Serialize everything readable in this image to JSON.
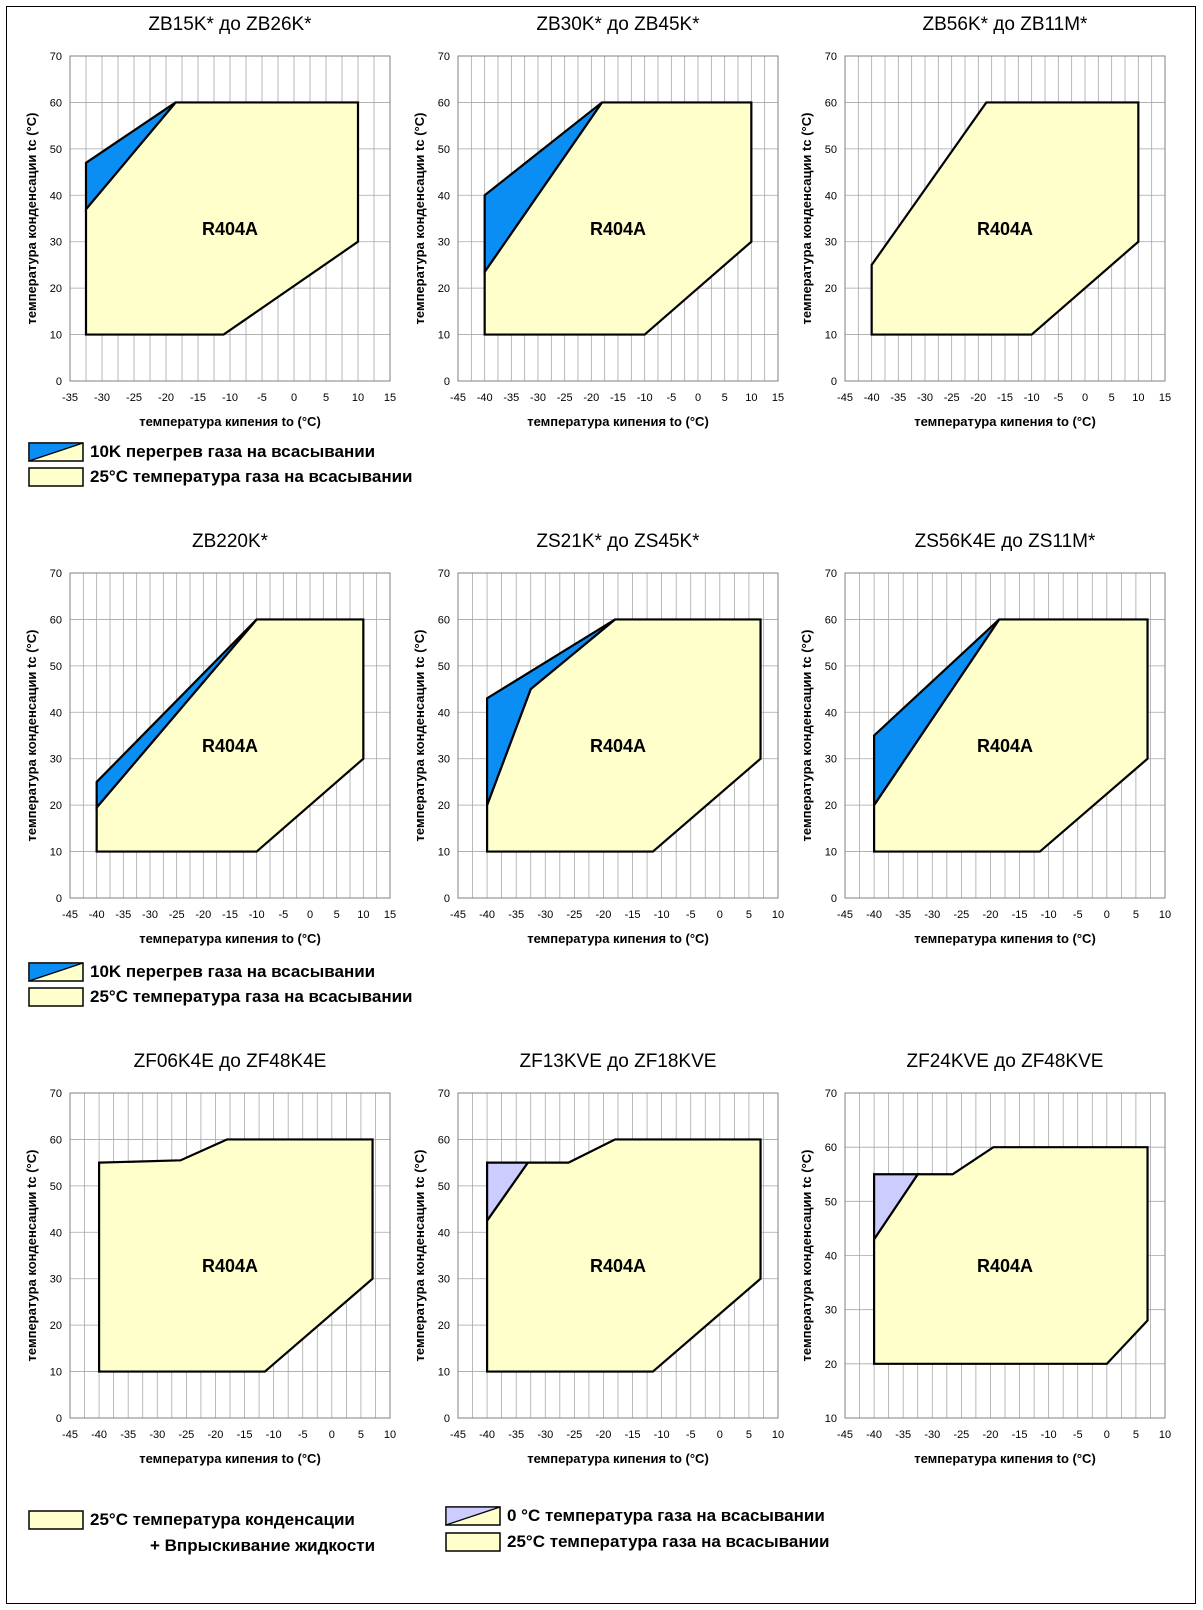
{
  "legends": {
    "l1": {
      "items": [
        {
          "text": "10K перегрев газа на всасывании",
          "swatch": "split-blue"
        },
        {
          "text": "25°C температура газа на всасывании",
          "swatch": "yellow"
        }
      ]
    },
    "l2": {
      "items": [
        {
          "text": "10K перегрев газа на всасывании",
          "swatch": "split-blue"
        },
        {
          "text": "25°C температура газа на всасывании",
          "swatch": "yellow"
        }
      ]
    },
    "l3": {
      "cond_line1": "25°C температура конденсации",
      "cond_line2": "+ Впрыскивание жидкости",
      "items": [
        {
          "text": "0 °C температура газа на всасывании",
          "swatch": "split-lavender"
        },
        {
          "text": "25°C температура газа на всасывании",
          "swatch": "yellow"
        }
      ]
    }
  },
  "colors": {
    "yellow": "#ffffcc",
    "blue": "#0a8ef4",
    "lavender": "#ccccff",
    "grid": "#a6a6a6"
  },
  "chart_data": [
    {
      "type": "area",
      "title": "ZB15K* до ZB26K*",
      "region_label": "R404A",
      "xlabel": "температура кипения to (°C)",
      "ylabel": "температура конденсации tc (°C)",
      "xlim": [
        -35,
        15
      ],
      "ylim": [
        0,
        70
      ],
      "xticks": [
        -35,
        -30,
        -25,
        -20,
        -15,
        -10,
        -5,
        0,
        5,
        10,
        15
      ],
      "yticks": [
        0,
        10,
        20,
        30,
        40,
        50,
        60,
        70
      ],
      "series": [
        {
          "name": "10K перегрев газа на всасывании",
          "color": "#0a8ef4",
          "points": [
            [
              -32.5,
              47
            ],
            [
              -18.5,
              60
            ],
            [
              -32.5,
              37
            ]
          ]
        },
        {
          "name": "25°C температура газа на всасывании",
          "color": "#ffffcc",
          "points": [
            [
              -32.5,
              37
            ],
            [
              -18.5,
              60
            ],
            [
              10,
              60
            ],
            [
              10,
              30
            ],
            [
              -11,
              10
            ],
            [
              -32.5,
              10
            ]
          ]
        }
      ]
    },
    {
      "type": "area",
      "title": "ZB30K* до ZB45K*",
      "region_label": "R404A",
      "xlabel": "температура кипения to (°C)",
      "ylabel": "температура конденсации tc (°C)",
      "xlim": [
        -45,
        15
      ],
      "ylim": [
        0,
        70
      ],
      "xticks": [
        -45,
        -40,
        -35,
        -30,
        -25,
        -20,
        -15,
        -10,
        -5,
        0,
        5,
        10,
        15
      ],
      "yticks": [
        0,
        10,
        20,
        30,
        40,
        50,
        60,
        70
      ],
      "series": [
        {
          "name": "10K перегрев газа на всасывании",
          "color": "#0a8ef4",
          "points": [
            [
              -40,
              40
            ],
            [
              -18,
              60
            ],
            [
              -40,
              23.5
            ]
          ]
        },
        {
          "name": "25°C температура газа на всасывании",
          "color": "#ffffcc",
          "points": [
            [
              -40,
              23.5
            ],
            [
              -18,
              60
            ],
            [
              10,
              60
            ],
            [
              10,
              30
            ],
            [
              -10,
              10
            ],
            [
              -40,
              10
            ]
          ]
        }
      ]
    },
    {
      "type": "area",
      "title": "ZB56K* до ZB11M*",
      "region_label": "R404A",
      "xlabel": "температура кипения to (°C)",
      "ylabel": "температура конденсации tc (°C)",
      "xlim": [
        -45,
        15
      ],
      "ylim": [
        0,
        70
      ],
      "xticks": [
        -45,
        -40,
        -35,
        -30,
        -25,
        -20,
        -15,
        -10,
        -5,
        0,
        5,
        10,
        15
      ],
      "yticks": [
        0,
        10,
        20,
        30,
        40,
        50,
        60,
        70
      ],
      "series": [
        {
          "name": "25°C температура газа на всасывании",
          "color": "#ffffcc",
          "points": [
            [
              -40,
              25
            ],
            [
              -18.5,
              60
            ],
            [
              10,
              60
            ],
            [
              10,
              30
            ],
            [
              -10,
              10
            ],
            [
              -40,
              10
            ]
          ]
        }
      ]
    },
    {
      "type": "area",
      "title": "ZB220K*",
      "region_label": "R404A",
      "xlabel": "температура кипения to (°C)",
      "ylabel": "температура конденсации tc (°C)",
      "xlim": [
        -45,
        15
      ],
      "ylim": [
        0,
        70
      ],
      "xticks": [
        -45,
        -40,
        -35,
        -30,
        -25,
        -20,
        -15,
        -10,
        -5,
        0,
        5,
        10,
        15
      ],
      "yticks": [
        0,
        10,
        20,
        30,
        40,
        50,
        60,
        70
      ],
      "series": [
        {
          "name": "10K перегрев газа на всасывании",
          "color": "#0a8ef4",
          "points": [
            [
              -40,
              25
            ],
            [
              -10,
              60
            ],
            [
              -40,
              19.5
            ]
          ]
        },
        {
          "name": "25°C температура газа на всасывании",
          "color": "#ffffcc",
          "points": [
            [
              -40,
              19.5
            ],
            [
              -10,
              60
            ],
            [
              10,
              60
            ],
            [
              10,
              30
            ],
            [
              -10,
              10
            ],
            [
              -40,
              10
            ]
          ]
        }
      ]
    },
    {
      "type": "area",
      "title": "ZS21K* до ZS45K*",
      "region_label": "R404A",
      "xlabel": "температура кипения to (°C)",
      "ylabel": "температура конденсации tc (°C)",
      "xlim": [
        -45,
        10
      ],
      "ylim": [
        0,
        70
      ],
      "xticks": [
        -45,
        -40,
        -35,
        -30,
        -25,
        -20,
        -15,
        -10,
        -5,
        0,
        5,
        10
      ],
      "yticks": [
        0,
        10,
        20,
        30,
        40,
        50,
        60,
        70
      ],
      "series": [
        {
          "name": "10K перегрев газа на всасывании",
          "color": "#0a8ef4",
          "points": [
            [
              -40,
              43
            ],
            [
              -18,
              60
            ],
            [
              -32.5,
              45
            ],
            [
              -40,
              20
            ]
          ]
        },
        {
          "name": "25°C температура газа на всасывании",
          "color": "#ffffcc",
          "points": [
            [
              -40,
              20
            ],
            [
              -32.5,
              45
            ],
            [
              -18,
              60
            ],
            [
              7,
              60
            ],
            [
              7,
              30
            ],
            [
              -11.5,
              10
            ],
            [
              -40,
              10
            ]
          ]
        }
      ]
    },
    {
      "type": "area",
      "title": "ZS56K4E до ZS11M*",
      "region_label": "R404A",
      "xlabel": "температура кипения to (°C)",
      "ylabel": "температура конденсации tc (°C)",
      "xlim": [
        -45,
        10
      ],
      "ylim": [
        0,
        70
      ],
      "xticks": [
        -45,
        -40,
        -35,
        -30,
        -25,
        -20,
        -15,
        -10,
        -5,
        0,
        5,
        10
      ],
      "yticks": [
        0,
        10,
        20,
        30,
        40,
        50,
        60,
        70
      ],
      "series": [
        {
          "name": "10K перегрев газа на всасывании",
          "color": "#0a8ef4",
          "points": [
            [
              -40,
              35
            ],
            [
              -18.5,
              60
            ],
            [
              -40,
              20
            ]
          ]
        },
        {
          "name": "25°C температура газа на всасывании",
          "color": "#ffffcc",
          "points": [
            [
              -40,
              20
            ],
            [
              -18.5,
              60
            ],
            [
              7,
              60
            ],
            [
              7,
              30
            ],
            [
              -11.5,
              10
            ],
            [
              -40,
              10
            ]
          ]
        }
      ]
    },
    {
      "type": "area",
      "title": "ZF06K4E до ZF48K4E",
      "region_label": "R404A",
      "xlabel": "температура кипения to (°C)",
      "ylabel": "температура конденсации tc (°C)",
      "xlim": [
        -45,
        10
      ],
      "ylim": [
        0,
        70
      ],
      "xticks": [
        -45,
        -40,
        -35,
        -30,
        -25,
        -20,
        -15,
        -10,
        -5,
        0,
        5,
        10
      ],
      "yticks": [
        0,
        10,
        20,
        30,
        40,
        50,
        60,
        70
      ],
      "series": [
        {
          "name": "25°C температура конденсации + Впрыскивание жидкости",
          "color": "#ffffcc",
          "points": [
            [
              -40,
              55
            ],
            [
              -26,
              55.5
            ],
            [
              -18,
              60
            ],
            [
              7,
              60
            ],
            [
              7,
              30
            ],
            [
              -11.5,
              10
            ],
            [
              -40,
              10
            ]
          ]
        }
      ]
    },
    {
      "type": "area",
      "title": "ZF13KVE до ZF18KVE",
      "region_label": "R404A",
      "xlabel": "температура кипения to (°C)",
      "ylabel": "температура конденсации tc (°C)",
      "xlim": [
        -45,
        10
      ],
      "ylim": [
        0,
        70
      ],
      "xticks": [
        -45,
        -40,
        -35,
        -30,
        -25,
        -20,
        -15,
        -10,
        -5,
        0,
        5,
        10
      ],
      "yticks": [
        0,
        10,
        20,
        30,
        40,
        50,
        60,
        70
      ],
      "series": [
        {
          "name": "0 °C температура газа на всасывании",
          "color": "#ccccff",
          "points": [
            [
              -40,
              55
            ],
            [
              -33,
              55
            ],
            [
              -40,
              42.5
            ]
          ]
        },
        {
          "name": "25°C температура газа на всасывании",
          "color": "#ffffcc",
          "points": [
            [
              -40,
              42.5
            ],
            [
              -33,
              55
            ],
            [
              -26,
              55
            ],
            [
              -18,
              60
            ],
            [
              7,
              60
            ],
            [
              7,
              30
            ],
            [
              -11.5,
              10
            ],
            [
              -40,
              10
            ]
          ]
        }
      ]
    },
    {
      "type": "area",
      "title": "ZF24KVE до ZF48KVE",
      "region_label": "R404A",
      "xlabel": "температура кипения to (°C)",
      "ylabel": "температура конденсации tc (°C)",
      "xlim": [
        -45,
        10
      ],
      "ylim": [
        10,
        70
      ],
      "xticks": [
        -45,
        -40,
        -35,
        -30,
        -25,
        -20,
        -15,
        -10,
        -5,
        0,
        5,
        10
      ],
      "yticks": [
        10,
        20,
        30,
        40,
        50,
        60,
        70
      ],
      "series": [
        {
          "name": "0 °C температура газа на всасывании",
          "color": "#ccccff",
          "points": [
            [
              -40,
              55
            ],
            [
              -32.5,
              55
            ],
            [
              -40,
              43
            ]
          ]
        },
        {
          "name": "25°C температура газа на всасывании",
          "color": "#ffffcc",
          "points": [
            [
              -40,
              43
            ],
            [
              -32.5,
              55
            ],
            [
              -26.5,
              55
            ],
            [
              -19.5,
              60
            ],
            [
              7,
              60
            ],
            [
              7,
              28
            ],
            [
              0,
              20
            ],
            [
              -40,
              20
            ]
          ]
        }
      ]
    }
  ]
}
